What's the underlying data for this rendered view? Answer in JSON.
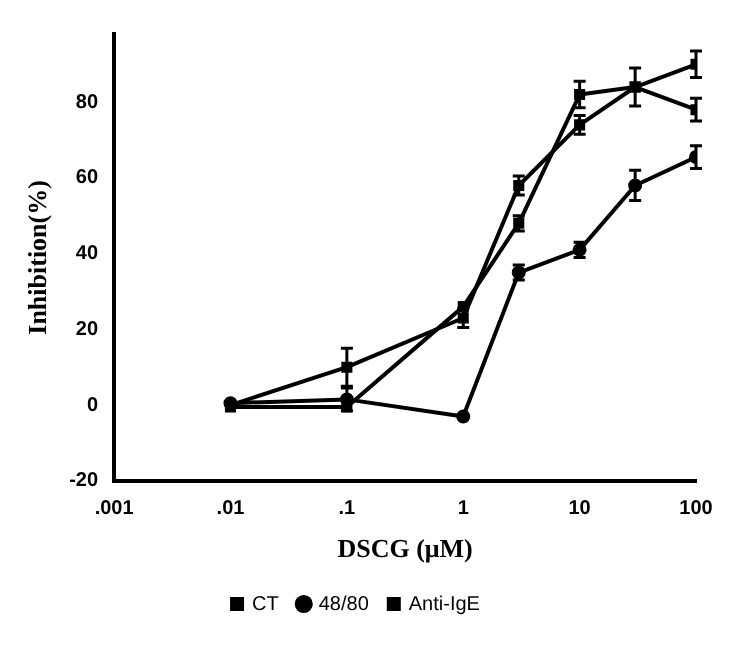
{
  "chart_data": {
    "type": "line",
    "xlabel": "DSCG (μM)",
    "ylabel": "Inhibition(%)",
    "log": "x",
    "xlim": [
      0.001,
      100
    ],
    "xticks": [
      {
        "value": 0.001,
        "label": ".001"
      },
      {
        "value": 0.01,
        "label": ".01"
      },
      {
        "value": 0.1,
        "label": ".1"
      },
      1,
      10,
      100
    ],
    "ylim": [
      -20,
      98
    ],
    "yticks": [
      -20,
      0,
      20,
      40,
      60,
      80
    ],
    "grid": false,
    "legend": "bottom",
    "x": [
      0.01,
      0.1,
      1,
      3,
      10,
      30,
      100
    ],
    "series": [
      {
        "name": "CT",
        "color": "#000000",
        "marker": "square",
        "values": [
          -0.5,
          -0.5,
          26,
          48,
          82,
          84,
          78
        ],
        "errors": [
          null,
          null,
          null,
          2,
          3.5,
          5,
          3
        ]
      },
      {
        "name": "48/80",
        "color": "#000000",
        "marker": "circle",
        "values": [
          0.5,
          1.5,
          -3,
          35,
          41,
          58,
          65.5
        ],
        "errors": [
          null,
          3,
          null,
          2,
          2,
          4,
          3
        ]
      },
      {
        "name": "Anti-IgE",
        "color": "#000000",
        "marker": "square",
        "values": [
          0,
          10,
          23,
          58,
          74,
          84,
          90
        ],
        "errors": [
          null,
          5,
          2.5,
          2.5,
          2.5,
          null,
          3.5
        ]
      }
    ]
  }
}
